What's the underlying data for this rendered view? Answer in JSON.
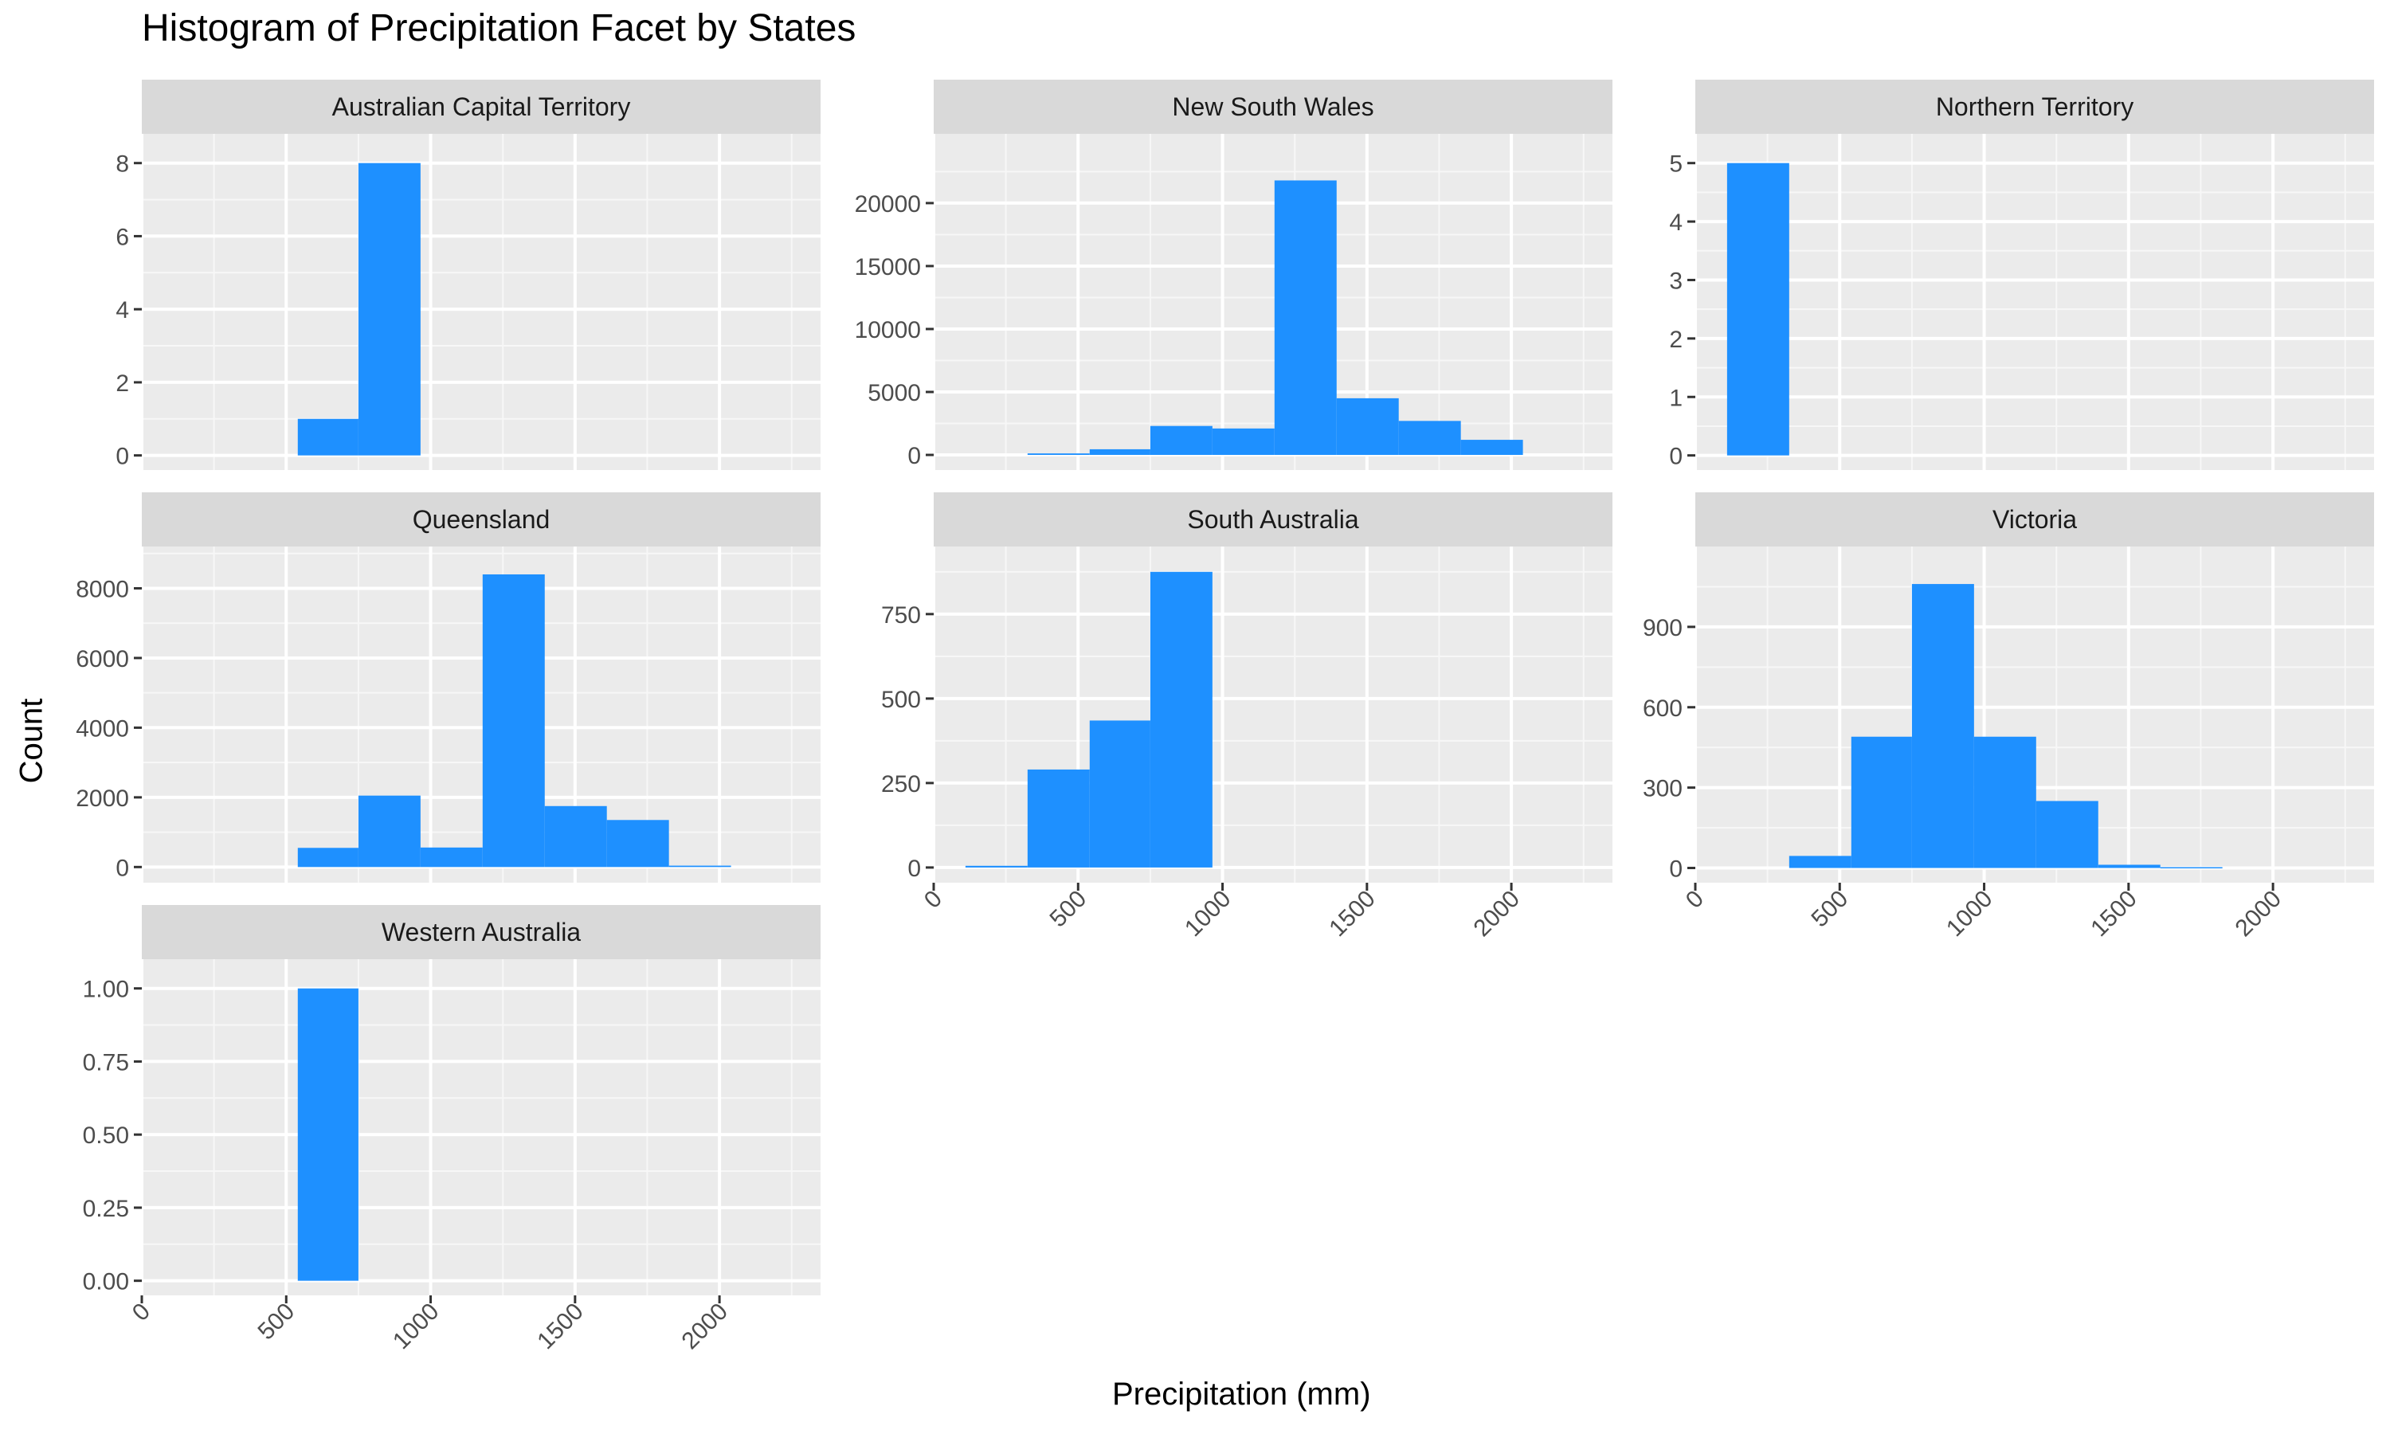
{
  "chart_data": {
    "type": "bar",
    "title": "Histogram of Precipitation Facet by States",
    "xlabel": "Precipitation (mm)",
    "ylabel": "Count",
    "xlim": [
      0,
      2350
    ],
    "x_ticks": [
      0,
      500,
      1000,
      1500,
      2000
    ],
    "bar_color": "#1E90FF",
    "panel_bg": "#EBEBEB",
    "strip_bg": "#D9D9D9",
    "grid": true,
    "panels": [
      {
        "name": "Australian Capital Territory",
        "ylim": [
          -0.4,
          8.8
        ],
        "y_ticks": [
          0,
          2,
          4,
          6,
          8
        ],
        "y_tick_labels": [
          "0",
          "2",
          "4",
          "6",
          "8"
        ],
        "bins": [
          {
            "x0": 540,
            "x1": 750,
            "count": 1
          },
          {
            "x0": 750,
            "x1": 965,
            "count": 8
          }
        ]
      },
      {
        "name": "New South Wales",
        "ylim": [
          -1200,
          25500
        ],
        "y_ticks": [
          0,
          5000,
          10000,
          15000,
          20000
        ],
        "y_tick_labels": [
          "0",
          "5000",
          "10000",
          "15000",
          "20000"
        ],
        "bins": [
          {
            "x0": 325,
            "x1": 540,
            "count": 120
          },
          {
            "x0": 540,
            "x1": 750,
            "count": 450
          },
          {
            "x0": 750,
            "x1": 965,
            "count": 2300
          },
          {
            "x0": 965,
            "x1": 1180,
            "count": 2100
          },
          {
            "x0": 1180,
            "x1": 1395,
            "count": 21800
          },
          {
            "x0": 1395,
            "x1": 1610,
            "count": 4500
          },
          {
            "x0": 1610,
            "x1": 1825,
            "count": 2700
          },
          {
            "x0": 1825,
            "x1": 2040,
            "count": 1200
          }
        ]
      },
      {
        "name": "Northern Territory",
        "ylim": [
          -0.25,
          5.5
        ],
        "y_ticks": [
          0,
          1,
          2,
          3,
          4,
          5
        ],
        "y_tick_labels": [
          "0",
          "1",
          "2",
          "3",
          "4",
          "5"
        ],
        "bins": [
          {
            "x0": 110,
            "x1": 325,
            "count": 5
          }
        ]
      },
      {
        "name": "Queensland",
        "ylim": [
          -450,
          9200
        ],
        "y_ticks": [
          0,
          2000,
          4000,
          6000,
          8000
        ],
        "y_tick_labels": [
          "0",
          "2000",
          "4000",
          "6000",
          "8000"
        ],
        "bins": [
          {
            "x0": 540,
            "x1": 750,
            "count": 550
          },
          {
            "x0": 750,
            "x1": 965,
            "count": 2050
          },
          {
            "x0": 965,
            "x1": 1180,
            "count": 560
          },
          {
            "x0": 1180,
            "x1": 1395,
            "count": 8400
          },
          {
            "x0": 1395,
            "x1": 1610,
            "count": 1750
          },
          {
            "x0": 1610,
            "x1": 1825,
            "count": 1350
          },
          {
            "x0": 1825,
            "x1": 2040,
            "count": 40
          }
        ]
      },
      {
        "name": "South Australia",
        "ylim": [
          -45,
          950
        ],
        "y_ticks": [
          0,
          250,
          500,
          750
        ],
        "y_tick_labels": [
          "0",
          "250",
          "500",
          "750"
        ],
        "bins": [
          {
            "x0": 110,
            "x1": 325,
            "count": 5
          },
          {
            "x0": 325,
            "x1": 540,
            "count": 290
          },
          {
            "x0": 540,
            "x1": 750,
            "count": 435
          },
          {
            "x0": 750,
            "x1": 965,
            "count": 875
          }
        ]
      },
      {
        "name": "Victoria",
        "ylim": [
          -55,
          1200
        ],
        "y_ticks": [
          0,
          300,
          600,
          900
        ],
        "y_tick_labels": [
          "0",
          "300",
          "600",
          "900"
        ],
        "bins": [
          {
            "x0": 325,
            "x1": 540,
            "count": 45
          },
          {
            "x0": 540,
            "x1": 750,
            "count": 490
          },
          {
            "x0": 750,
            "x1": 965,
            "count": 1060
          },
          {
            "x0": 965,
            "x1": 1180,
            "count": 490
          },
          {
            "x0": 1180,
            "x1": 1395,
            "count": 250
          },
          {
            "x0": 1395,
            "x1": 1610,
            "count": 12
          },
          {
            "x0": 1610,
            "x1": 1825,
            "count": 3
          }
        ]
      },
      {
        "name": "Western Australia",
        "ylim": [
          -0.05,
          1.1
        ],
        "y_ticks": [
          0,
          0.25,
          0.5,
          0.75,
          1.0
        ],
        "y_tick_labels": [
          "0.00",
          "0.25",
          "0.50",
          "0.75",
          "1.00"
        ],
        "bins": [
          {
            "x0": 540,
            "x1": 750,
            "count": 1
          }
        ]
      }
    ]
  }
}
